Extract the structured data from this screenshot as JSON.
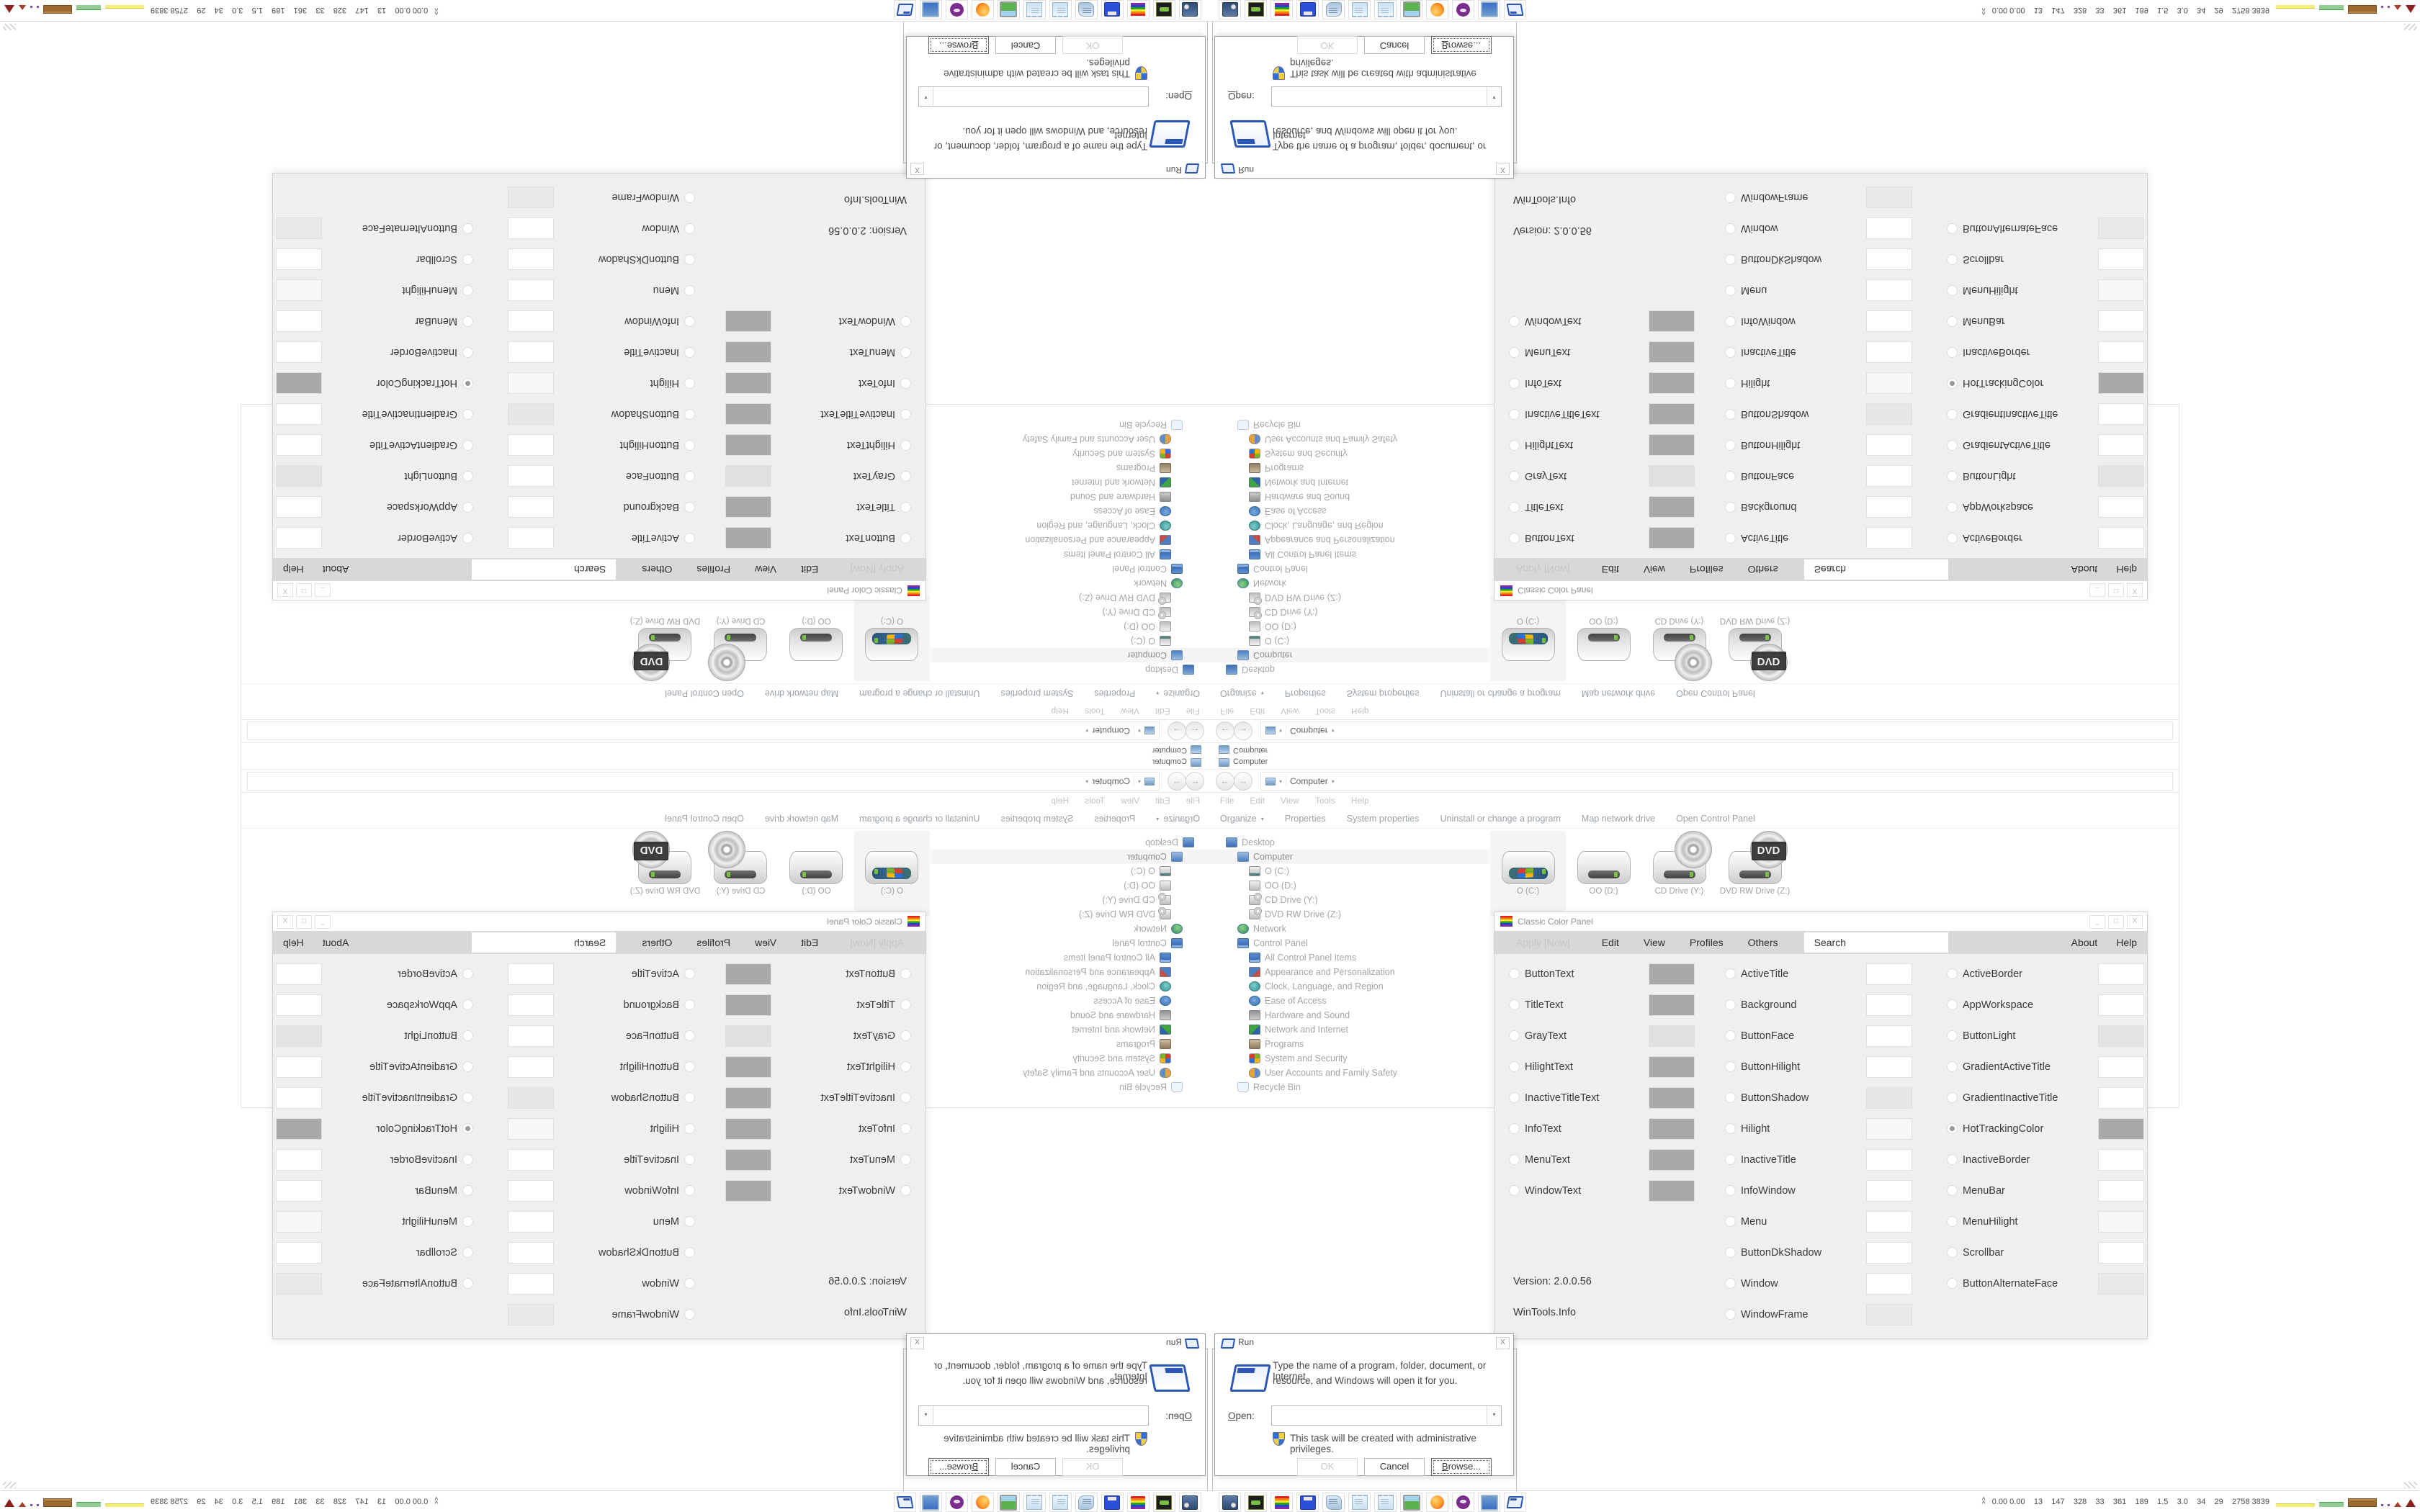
{
  "explorer": {
    "title": "Computer",
    "breadcrumb_root": "Computer",
    "menubar": [
      "File",
      "Edit",
      "View",
      "Tools",
      "Help"
    ],
    "commandbar": {
      "organize": "Organize",
      "items": [
        "Properties",
        "System properties",
        "Uninstall or change a program",
        "Map network drive",
        "Open Control Panel"
      ]
    },
    "tree": [
      {
        "label": "Desktop",
        "icon": "icon-desktop",
        "level": 0
      },
      {
        "label": "Computer",
        "icon": "icon-computer",
        "level": 1,
        "selected": true
      },
      {
        "label": "O (C:)",
        "icon": "icon-drive-win",
        "level": 2
      },
      {
        "label": "OO (D:)",
        "icon": "icon-drive",
        "level": 2
      },
      {
        "label": "CD Drive (Y:)",
        "icon": "icon-drive-cd",
        "level": 2
      },
      {
        "label": "DVD RW Drive (Z:)",
        "icon": "icon-drive-cd",
        "level": 2
      },
      {
        "label": "Network",
        "icon": "icon-network",
        "level": 1
      },
      {
        "label": "Control Panel",
        "icon": "icon-cpanel",
        "level": 1
      },
      {
        "label": "All Control Panel Items",
        "icon": "icon-cpanel",
        "level": 2
      },
      {
        "label": "Appearance and Personalization",
        "icon": "icon-appearance",
        "level": 2
      },
      {
        "label": "Clock, Language, and Region",
        "icon": "icon-clock",
        "level": 2
      },
      {
        "label": "Ease of Access",
        "icon": "icon-ease",
        "level": 2
      },
      {
        "label": "Hardware and Sound",
        "icon": "icon-hardware",
        "level": 2
      },
      {
        "label": "Network and Internet",
        "icon": "icon-netinet",
        "level": 2
      },
      {
        "label": "Programs",
        "icon": "icon-programs",
        "level": 2
      },
      {
        "label": "System and Security",
        "icon": "icon-syssec",
        "level": 2
      },
      {
        "label": "User Accounts and Family Safety",
        "icon": "icon-users",
        "level": 2
      },
      {
        "label": "Recycle Bin",
        "icon": "icon-recycle",
        "level": 1
      }
    ],
    "drives": [
      {
        "label": "O (C:)",
        "kind": "drv-win",
        "selected": true
      },
      {
        "label": "OO (D:)",
        "kind": "drv-plain"
      },
      {
        "label": "CD Drive (Y:)",
        "kind": "drv-cd"
      },
      {
        "label": "DVD RW Drive (Z:)",
        "kind": "drv-dvd",
        "badge": "DVD"
      }
    ]
  },
  "ccp": {
    "title": "Classic Color Panel",
    "menu": {
      "apply": "Apply [Now]",
      "items": [
        "Edit",
        "View",
        "Profiles",
        "Others"
      ],
      "search": "Search",
      "right": [
        "About",
        "Help"
      ]
    },
    "col1": [
      {
        "label": "ButtonText",
        "color": "#a9a9a9"
      },
      {
        "label": "TitleText",
        "color": "#a9a9a9"
      },
      {
        "label": "GrayText",
        "color": "#e0e0e0"
      },
      {
        "label": "HilightText",
        "color": "#a9a9a9"
      },
      {
        "label": "InactiveTitleText",
        "color": "#a9a9a9"
      },
      {
        "label": "InfoText",
        "color": "#a9a9a9"
      },
      {
        "label": "MenuText",
        "color": "#a9a9a9"
      },
      {
        "label": "WindowText",
        "color": "#a9a9a9"
      }
    ],
    "col2": [
      {
        "label": "ActiveTitle",
        "color": "#ffffff"
      },
      {
        "label": "Background",
        "color": "#ffffff"
      },
      {
        "label": "ButtonFace",
        "color": "#ffffff"
      },
      {
        "label": "ButtonHilight",
        "color": "#ffffff"
      },
      {
        "label": "ButtonShadow",
        "color": "#e6e6e6"
      },
      {
        "label": "Hilight",
        "color": "#f7f7f7"
      },
      {
        "label": "InactiveTitle",
        "color": "#ffffff"
      },
      {
        "label": "InfoWindow",
        "color": "#ffffff"
      },
      {
        "label": "Menu",
        "color": "#ffffff"
      },
      {
        "label": "ButtonDkShadow",
        "color": "#ffffff"
      },
      {
        "label": "Window",
        "color": "#ffffff"
      },
      {
        "label": "WindowFrame",
        "color": "#e9e9e9"
      }
    ],
    "col3": [
      {
        "label": "ActiveBorder",
        "color": "#ffffff"
      },
      {
        "label": "AppWorkspace",
        "color": "#ffffff"
      },
      {
        "label": "ButtonLight",
        "color": "#e3e3e3"
      },
      {
        "label": "GradientActiveTitle",
        "color": "#ffffff"
      },
      {
        "label": "GradientInactiveTitle",
        "color": "#ffffff"
      },
      {
        "label": "HotTrackingColor",
        "color": "#a9a9a9",
        "selected": true
      },
      {
        "label": "InactiveBorder",
        "color": "#ffffff"
      },
      {
        "label": "MenuBar",
        "color": "#ffffff"
      },
      {
        "label": "MenuHilight",
        "color": "#f7f7f7"
      },
      {
        "label": "Scrollbar",
        "color": "#ffffff"
      },
      {
        "label": "ButtonAlternateFace",
        "color": "#e9e9e9"
      }
    ],
    "footer": {
      "version": "Version: 2.0.0.56",
      "site": "WinTools.Info"
    }
  },
  "run": {
    "title": "Run",
    "line1": "Type the name of a program, folder, document, or Internet",
    "line2": "resource, and Windows will open it for you.",
    "open_label": "Open:",
    "admin_note": "This task will be created with administrative privileges.",
    "buttons": {
      "ok": "OK",
      "cancel": "Cancel",
      "browse": "Browse..."
    },
    "close_glyph": "X"
  },
  "taskbar": {
    "icons": [
      {
        "name": "display-settings-icon",
        "kind": "tb-display"
      },
      {
        "name": "disk-utility-icon",
        "kind": "tb-disk"
      },
      {
        "name": "classic-color-panel-icon",
        "kind": "tb-rainbow"
      },
      {
        "name": "floppy-64-icon",
        "kind": "tb-floppy",
        "text": "64"
      },
      {
        "name": "script-icon",
        "kind": "tb-scroll"
      },
      {
        "name": "notepad-icon",
        "kind": "tb-note"
      },
      {
        "name": "notepad-2-icon",
        "kind": "tb-note"
      },
      {
        "name": "wallpaper-settings-icon",
        "kind": "tb-wall"
      },
      {
        "name": "firefox-icon",
        "kind": "tb-fox"
      },
      {
        "name": "media-app-icon",
        "kind": "tb-purple"
      },
      {
        "name": "computer-icon",
        "kind": "tb-pc"
      },
      {
        "name": "run-icon",
        "kind": "tb-run"
      }
    ],
    "tray": {
      "expand_glyph": "^",
      "stats": "0.00 0.00    13    147    328    33    361    189    1.5    3.0    34    29    2758 3839"
    }
  }
}
